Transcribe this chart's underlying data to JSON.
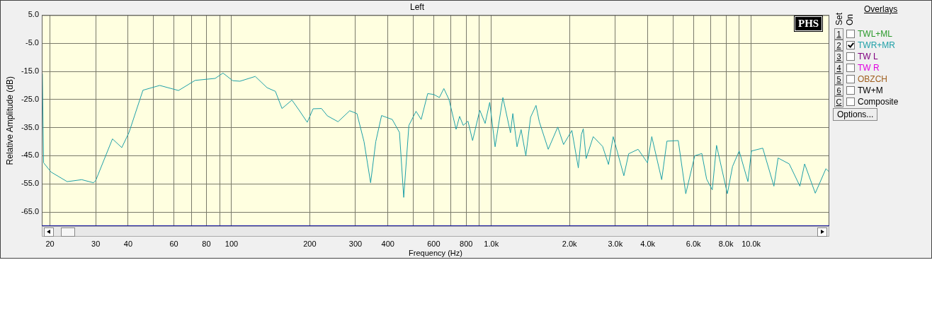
{
  "chart_data": {
    "type": "line",
    "title": "Left",
    "xlabel": "Frequency (Hz)",
    "ylabel": "Relative Amplitude (dB)",
    "legend_title": "Overlays",
    "legend": "right",
    "log": "x",
    "grid": true,
    "marker": "none",
    "line_style": "solid",
    "xlim": [
      18.6,
      20000
    ],
    "ylim": [
      -70,
      5
    ],
    "xticks": [
      20,
      30,
      40,
      {
        "value": 50,
        "label": null
      },
      60,
      {
        "value": 70,
        "label": null
      },
      80,
      {
        "value": 90,
        "label": null
      },
      100,
      200,
      300,
      400,
      {
        "value": 500,
        "label": null
      },
      600,
      {
        "value": 700,
        "label": null
      },
      800,
      {
        "value": 900,
        "label": null
      },
      {
        "value": 1000,
        "label": "1.0k"
      },
      {
        "value": 2000,
        "label": "2.0k"
      },
      {
        "value": 3000,
        "label": "3.0k"
      },
      {
        "value": 4000,
        "label": "4.0k"
      },
      {
        "value": 5000,
        "label": null
      },
      {
        "value": 6000,
        "label": "6.0k"
      },
      {
        "value": 7000,
        "label": null
      },
      {
        "value": 8000,
        "label": "8.0k"
      },
      {
        "value": 9000,
        "label": null
      },
      {
        "value": 10000,
        "label": "10.0k"
      }
    ],
    "yticks": [
      {
        "value": 5,
        "label": "5.0"
      },
      {
        "value": -5,
        "label": "-5.0"
      },
      {
        "value": -15,
        "label": "-15.0"
      },
      {
        "value": -25,
        "label": "-25.0"
      },
      {
        "value": -35,
        "label": "-35.0"
      },
      {
        "value": -45,
        "label": "-45.0"
      },
      {
        "value": -55,
        "label": "-55.0"
      },
      {
        "value": -65,
        "label": "-65.0"
      }
    ],
    "annotations": [
      "PHS",
      "Set",
      "On",
      "1",
      "TWL+ML",
      "2",
      "3",
      "TW L",
      "4",
      "TW R",
      "5",
      "OBZCH",
      "6",
      "TW+M",
      "C",
      "Composite",
      "Options..."
    ],
    "series": [
      {
        "name": "TWR+MR",
        "color": "#1fa0a8",
        "x": [
          18.7,
          18.9,
          20.2,
          23.3,
          26.5,
          29.4,
          30.0,
          34.8,
          37.8,
          40.3,
          45.6,
          52.9,
          62.5,
          72.4,
          86.5,
          92.7,
          101,
          107.7,
          123.4,
          137,
          147.5,
          156.4,
          170.8,
          182,
          195.6,
          206,
          222,
          233.8,
          257,
          285,
          303.8,
          323.6,
          343,
          359,
          378,
          415.6,
          443,
          460,
          481.6,
          513,
          537,
          569,
          600,
          631,
          656.6,
          687,
          731.7,
          755,
          779.5,
          813,
          847,
          902.7,
          946.5,
          985.6,
          1034,
          1108,
          1185,
          1210,
          1256,
          1302,
          1358,
          1416,
          1486,
          1530,
          1656,
          1802,
          1897,
          2042,
          2162,
          2221,
          2259,
          2317,
          2468,
          2682,
          2825,
          2945,
          3237,
          3378,
          3673,
          3991,
          4146,
          4527,
          4742,
          5243,
          5604,
          6068,
          6462,
          6741,
          7088,
          7361,
          8101,
          8482,
          8995,
          9721,
          10030,
          11090,
          12240,
          12700,
          14020,
          15410,
          16070,
          17660,
          19410,
          20000
        ],
        "values": [
          -15.8,
          -47.5,
          -50.8,
          -54.2,
          -53.5,
          -54.6,
          -53.8,
          -39,
          -42.1,
          -36.7,
          -21.7,
          -20,
          -21.8,
          -18.2,
          -17.5,
          -15.6,
          -18.3,
          -18.5,
          -16.8,
          -20.8,
          -22.1,
          -28.2,
          -25.2,
          -28.8,
          -33.1,
          -28.3,
          -28.2,
          -30.8,
          -32.9,
          -29,
          -30,
          -40,
          -54.6,
          -40,
          -30.7,
          -32.1,
          -36.7,
          -59.8,
          -34.2,
          -29.2,
          -32.1,
          -22.9,
          -23.2,
          -24.3,
          -21.1,
          -25,
          -35.6,
          -31,
          -34.2,
          -32.7,
          -39.6,
          -28.8,
          -33.5,
          -26,
          -41.8,
          -24.3,
          -36.8,
          -30,
          -41.8,
          -35.7,
          -45,
          -31.3,
          -27.1,
          -32.9,
          -42.7,
          -34.8,
          -41,
          -36,
          -49.3,
          -37.5,
          -35.4,
          -46,
          -38.2,
          -41.7,
          -48.1,
          -38.2,
          -52.1,
          -44.3,
          -42.7,
          -47.5,
          -38.2,
          -53.5,
          -39.8,
          -39.6,
          -58.5,
          -45,
          -44.2,
          -53.3,
          -57.1,
          -41.3,
          -58.5,
          -48.8,
          -43.3,
          -54.2,
          -43.3,
          -42.3,
          -55.8,
          -45.8,
          -47.9,
          -55.8,
          -47.9,
          -58.3,
          -49.6,
          -50.8
        ]
      }
    ]
  }
}
